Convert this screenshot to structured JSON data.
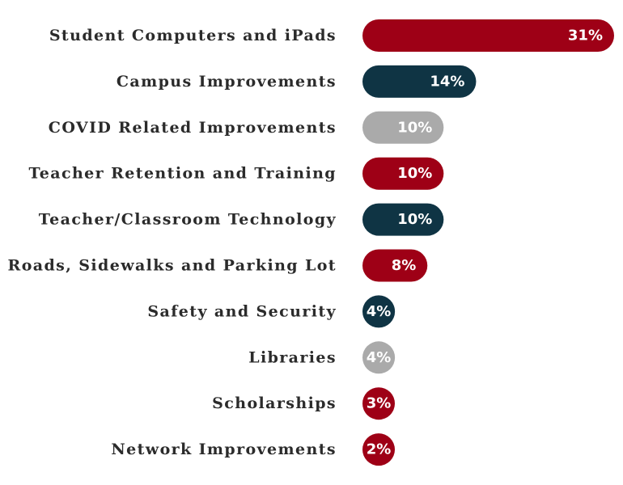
{
  "chart_data": {
    "type": "bar",
    "orientation": "horizontal",
    "categories": [
      "Student Computers and iPads",
      "Campus Improvements",
      "COVID Related Improvements",
      "Teacher Retention and Training",
      "Teacher/Classroom Technology",
      "Roads, Sidewalks and Parking Lot",
      "Safety and Security",
      "Libraries",
      "Scholarships",
      "Network Improvements"
    ],
    "values": [
      31,
      14,
      10,
      10,
      10,
      8,
      4,
      4,
      3,
      2
    ],
    "value_labels": [
      "31%",
      "14%",
      "10%",
      "10%",
      "10%",
      "8%",
      "4%",
      "4%",
      "3%",
      "2%"
    ],
    "bar_colors": [
      "#9e0016",
      "#0f3444",
      "#aaaaaa",
      "#9e0016",
      "#0f3444",
      "#9e0016",
      "#0f3444",
      "#aaaaaa",
      "#9e0016",
      "#9e0016"
    ],
    "unit": "%",
    "title": "",
    "xlabel": "",
    "ylabel": "",
    "grid": false,
    "legend": "none"
  }
}
